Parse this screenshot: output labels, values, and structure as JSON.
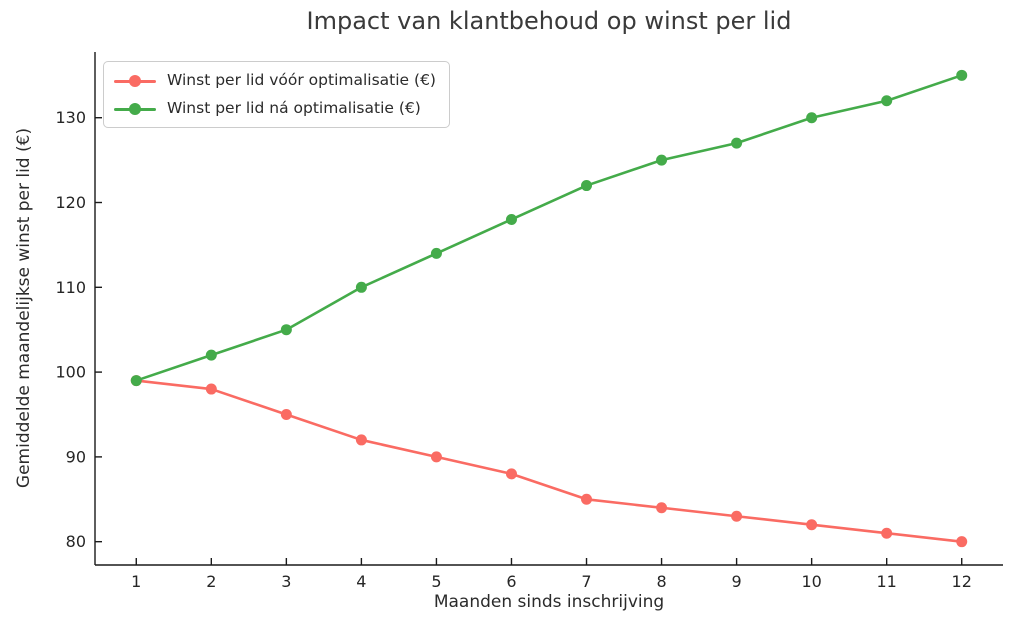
{
  "chart_data": {
    "type": "line",
    "title": "Impact van klantbehoud op winst per lid",
    "xlabel": "Maanden sinds inschrijving",
    "ylabel": "Gemiddelde maandelijkse winst per lid (€)",
    "x": [
      1,
      2,
      3,
      4,
      5,
      6,
      7,
      8,
      9,
      10,
      11,
      12
    ],
    "series": [
      {
        "name": "Winst per lid vóór optimalisatie (€)",
        "color": "#fa6b63",
        "values": [
          99,
          98,
          95,
          92,
          90,
          88,
          85,
          84,
          83,
          82,
          81,
          80
        ]
      },
      {
        "name": "Winst per lid ná optimalisatie (€)",
        "color": "#44ab4a",
        "values": [
          99,
          102,
          105,
          110,
          114,
          118,
          122,
          125,
          127,
          130,
          132,
          135
        ]
      }
    ],
    "xlim": [
      0.45,
      12.55
    ],
    "ylim": [
      77.25,
      137.75
    ],
    "xticks": [
      1,
      2,
      3,
      4,
      5,
      6,
      7,
      8,
      9,
      10,
      11,
      12
    ],
    "yticks": [
      80,
      90,
      100,
      110,
      120,
      130
    ],
    "grid": false,
    "legend_position": "upper left",
    "marker": "circle"
  },
  "colors": {
    "spine": "#1a1a1a",
    "tick_text": "#262626",
    "title_text": "#3a3a3a",
    "legend_border": "#cccccc",
    "background": "#ffffff"
  }
}
